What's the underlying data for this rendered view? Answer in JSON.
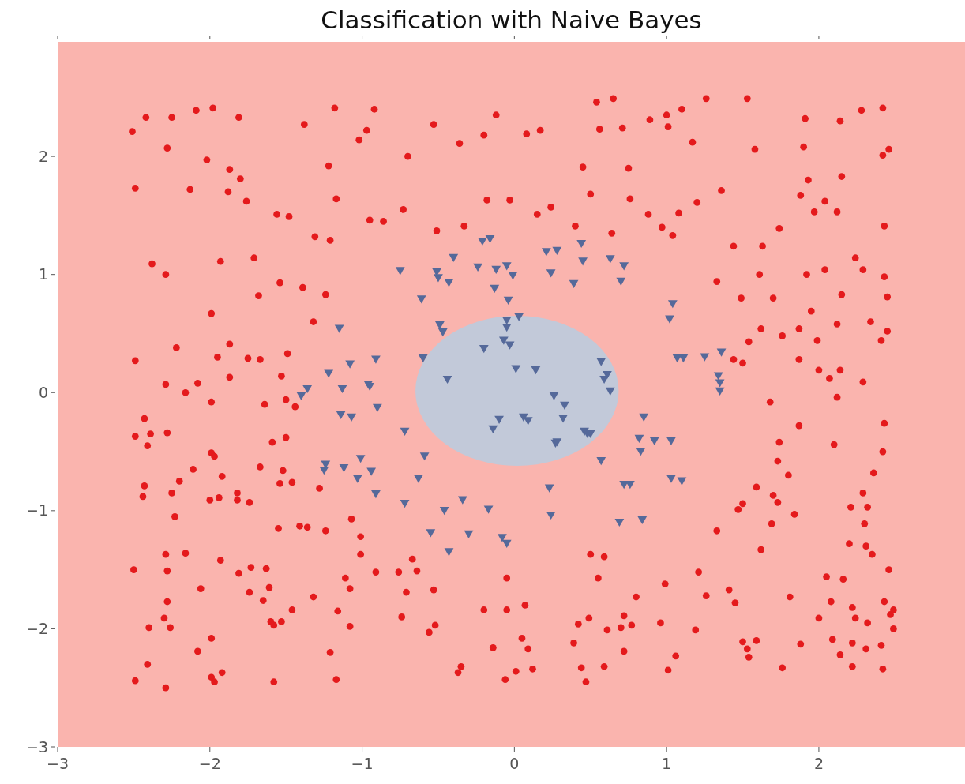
{
  "chart_data": {
    "type": "scatter",
    "title": "Classification with Naive Bayes",
    "xlim": [
      -3,
      2.96
    ],
    "ylim": [
      -3,
      2.97
    ],
    "xticks": [
      -3,
      -2,
      -1,
      0,
      1,
      2
    ],
    "yticks": [
      -3,
      -2,
      -1,
      0,
      1,
      2
    ],
    "grid": false,
    "bands": [
      {
        "axis": "x",
        "from": -3,
        "to": 2.96,
        "color": "#fab4ae"
      }
    ],
    "series": [
      {
        "type": "scatter",
        "marker": "circle",
        "color": "#e41a1c",
        "x": [
          -2.51,
          -2.42,
          -2.25,
          -2.09,
          -1.98,
          -1.81,
          -1.38,
          -1.18,
          -0.92,
          -0.53,
          -0.12,
          0.08,
          0.17,
          0.54,
          0.65,
          1.0,
          1.1,
          1.26,
          1.53,
          1.91,
          2.28,
          2.42,
          2.46,
          2.42,
          2.14,
          -2.28,
          -2.02,
          -1.87,
          -1.8,
          -1.22,
          -1.02,
          -0.97,
          -0.7,
          -0.36,
          -0.2,
          0.45,
          0.56,
          0.71,
          0.75,
          0.89,
          1.01,
          1.17,
          1.36,
          1.58,
          1.9,
          1.93,
          2.15,
          -2.49,
          -2.13,
          -1.88,
          -1.76,
          -1.56,
          -1.48,
          -1.31,
          -1.21,
          -1.17,
          -0.95,
          -0.86,
          -0.73,
          -0.51,
          -0.33,
          -0.18,
          -0.03,
          0.15,
          0.24,
          0.4,
          0.5,
          0.64,
          0.76,
          0.88,
          0.97,
          1.04,
          1.08,
          1.2,
          1.44,
          1.63,
          1.74,
          1.88,
          1.97,
          2.04,
          2.12,
          2.43,
          -2.38,
          -2.29,
          -1.93,
          -1.71,
          -1.68,
          -1.54,
          -1.39,
          -1.24,
          -1.32,
          1.61,
          1.33,
          1.49,
          1.7,
          1.92,
          2.04,
          2.24,
          2.29,
          2.43,
          2.45,
          2.15,
          2.34,
          1.95,
          1.76,
          1.87,
          1.99,
          2.12,
          2.45,
          2.41,
          1.54,
          1.62,
          1.5,
          1.44,
          1.87,
          2.0,
          2.14,
          2.07,
          2.29,
          1.68,
          2.12,
          2.43,
          1.87,
          2.1,
          1.74,
          2.42,
          -2.49,
          -2.22,
          -2.29,
          -2.16,
          -2.08,
          -1.99,
          -1.99,
          -1.95,
          -1.87,
          -1.87,
          -1.75,
          -1.67,
          -1.64,
          -1.49,
          -1.53,
          -1.5,
          -1.44,
          -2.43,
          -2.49,
          -2.28,
          -2.41,
          -2.39,
          -2.43,
          -2.44,
          -2.25,
          -2.2,
          -2.11,
          -1.99,
          -1.97,
          -1.92,
          -1.94,
          -2.0,
          -1.82,
          -1.82,
          -1.74,
          -1.67,
          -1.59,
          -1.5,
          -1.52,
          -1.54,
          -1.46,
          -1.28,
          -2.23,
          -1.55,
          -1.41,
          -1.36,
          -1.24,
          -1.07,
          -1.01,
          -1.01,
          -1.11,
          -1.08,
          -0.91,
          -0.67,
          -0.76,
          -0.64,
          -0.53,
          -0.71,
          -2.5,
          -2.29,
          -2.28,
          -2.16,
          -1.93,
          -2.28,
          -2.06,
          -1.73,
          -1.81,
          -1.74,
          -1.65,
          -1.63,
          -1.61,
          -1.32,
          -1.46,
          -1.6,
          -1.58,
          -1.53,
          -1.16,
          -1.08,
          -2.3,
          -2.4,
          -2.26,
          -1.99,
          -2.08,
          -2.41,
          -2.49,
          -1.99,
          -1.97,
          -1.92,
          -2.29,
          -1.58,
          -1.21,
          -1.17,
          -0.74,
          -0.56,
          -0.52,
          -0.2,
          -0.05,
          -0.05,
          0.07,
          -0.14,
          0.05,
          0.09,
          0.01,
          0.12,
          -0.06,
          -0.35,
          -0.37,
          0.39,
          0.42,
          0.49,
          0.44,
          0.47,
          0.5,
          0.59,
          0.55,
          0.59,
          0.61,
          0.72,
          0.7,
          0.77,
          0.72,
          0.8,
          0.96,
          0.99,
          1.01,
          1.06,
          1.19,
          1.21,
          1.26,
          1.33,
          1.41,
          1.45,
          1.47,
          1.5,
          1.5,
          1.53,
          1.54,
          1.59,
          1.59,
          1.62,
          1.7,
          1.69,
          1.73,
          1.73,
          1.8,
          1.84,
          1.81,
          1.76,
          1.88,
          2.0,
          2.05,
          2.08,
          2.09,
          2.14,
          2.16,
          2.2,
          2.21,
          2.22,
          2.24,
          2.22,
          2.22,
          2.29,
          2.3,
          2.32,
          2.31,
          2.35,
          2.32,
          2.31,
          2.36,
          2.41,
          2.42,
          2.46,
          2.47,
          2.49,
          2.49,
          2.43
        ],
        "values": [
          2.21,
          2.33,
          2.33,
          2.39,
          2.41,
          2.33,
          2.27,
          2.41,
          2.4,
          2.27,
          2.35,
          2.19,
          2.22,
          2.46,
          2.49,
          2.35,
          2.4,
          2.49,
          2.49,
          2.32,
          2.39,
          2.41,
          2.06,
          2.01,
          2.3,
          2.07,
          1.97,
          1.89,
          1.81,
          1.92,
          2.14,
          2.22,
          2.0,
          2.11,
          2.18,
          1.91,
          2.23,
          2.24,
          1.9,
          2.31,
          2.25,
          2.12,
          1.71,
          2.06,
          2.08,
          1.8,
          1.83,
          1.73,
          1.72,
          1.7,
          1.62,
          1.51,
          1.49,
          1.32,
          1.29,
          1.64,
          1.46,
          1.45,
          1.55,
          1.37,
          1.41,
          1.63,
          1.63,
          1.51,
          1.57,
          1.41,
          1.68,
          1.35,
          1.64,
          1.51,
          1.4,
          1.33,
          1.52,
          1.61,
          1.24,
          1.24,
          1.39,
          1.67,
          1.53,
          1.62,
          1.53,
          1.41,
          1.09,
          1.0,
          1.11,
          1.14,
          0.82,
          0.93,
          0.89,
          0.83,
          0.6,
          1.0,
          0.94,
          0.8,
          0.8,
          1.0,
          1.04,
          1.14,
          1.04,
          0.98,
          0.81,
          0.83,
          0.6,
          0.69,
          0.48,
          0.54,
          0.44,
          0.58,
          0.52,
          0.44,
          0.43,
          0.54,
          0.25,
          0.28,
          0.28,
          0.19,
          0.19,
          0.12,
          0.09,
          -0.08,
          -0.04,
          -0.26,
          -0.28,
          -0.44,
          -0.42,
          -0.5,
          0.27,
          0.38,
          0.07,
          0.0,
          0.08,
          -0.08,
          0.67,
          0.3,
          0.41,
          0.13,
          0.29,
          0.28,
          -0.1,
          0.33,
          0.14,
          -0.06,
          -0.12,
          -0.22,
          -0.37,
          -0.34,
          -0.45,
          -0.35,
          -0.79,
          -0.88,
          -0.85,
          -0.75,
          -0.65,
          -0.51,
          -0.54,
          -0.71,
          -0.89,
          -0.91,
          -0.85,
          -0.91,
          -0.93,
          -0.63,
          -0.42,
          -0.38,
          -0.66,
          -0.77,
          -0.76,
          -0.81,
          -1.05,
          -1.15,
          -1.13,
          -1.14,
          -1.17,
          -1.07,
          -1.22,
          -1.37,
          -1.57,
          -1.66,
          -1.52,
          -1.41,
          -1.52,
          -1.51,
          -1.67,
          -1.69,
          -1.5,
          -1.37,
          -1.51,
          -1.36,
          -1.42,
          -1.77,
          -1.66,
          -1.48,
          -1.53,
          -1.69,
          -1.76,
          -1.49,
          -1.65,
          -1.73,
          -1.84,
          -1.94,
          -1.97,
          -1.94,
          -1.85,
          -1.98,
          -1.91,
          -1.99,
          -1.99,
          -2.08,
          -2.19,
          -2.3,
          -2.44,
          -2.41,
          -2.45,
          -2.37,
          -2.5,
          -2.45,
          -2.2,
          -2.43,
          -1.9,
          -2.03,
          -1.97,
          -1.84,
          -1.84,
          -1.57,
          -1.8,
          -2.16,
          -2.08,
          -2.17,
          -2.36,
          -2.34,
          -2.43,
          -2.32,
          -2.37,
          -2.12,
          -1.96,
          -1.91,
          -2.33,
          -2.45,
          -1.37,
          -1.39,
          -1.57,
          -2.32,
          -2.01,
          -1.89,
          -1.99,
          -1.97,
          -2.19,
          -1.73,
          -1.95,
          -1.62,
          -2.35,
          -2.23,
          -2.01,
          -1.52,
          -1.72,
          -1.17,
          -1.67,
          -1.78,
          -0.99,
          -0.94,
          -2.11,
          -2.17,
          -2.24,
          -2.1,
          -0.8,
          -1.33,
          -0.87,
          -1.11,
          -0.93,
          -0.58,
          -0.7,
          -1.03,
          -1.73,
          -2.33,
          -2.13,
          -1.91,
          -1.56,
          -1.77,
          -2.09,
          -2.22,
          -1.58,
          -1.28,
          -0.97,
          -1.82,
          -1.91,
          -2.12,
          -2.32,
          -0.85,
          -1.11,
          -0.97,
          -1.3,
          -1.37,
          -1.95,
          -2.17,
          -0.68,
          -2.14,
          -2.34,
          -1.5,
          -1.88,
          -2.0,
          -1.84,
          -1.77
        ]
      },
      {
        "type": "scatter",
        "marker": "triangle",
        "color": "#55699a",
        "x": [
          -0.21,
          -0.16,
          -0.24,
          -0.12,
          -0.05,
          -0.01,
          -0.4,
          -0.51,
          -0.5,
          -0.43,
          -0.75,
          -0.61,
          -0.13,
          -0.04,
          0.21,
          0.28,
          0.24,
          0.39,
          0.45,
          0.44,
          0.63,
          0.72,
          0.7,
          -1.15,
          -0.91,
          -1.08,
          -1.22,
          -1.36,
          -1.4,
          -1.13,
          -0.96,
          -0.95,
          -0.9,
          -1.14,
          -1.07,
          -0.72,
          -0.59,
          -1.01,
          -1.24,
          -1.25,
          -1.12,
          -1.03,
          -0.94,
          -0.91,
          -0.63,
          -0.72,
          -0.55,
          -0.46,
          -0.34,
          -0.43,
          -0.3,
          -0.17,
          -0.08,
          -0.05,
          -0.49,
          -0.47,
          -0.6,
          -0.44,
          -0.05,
          0.03,
          -0.05,
          -0.07,
          -0.03,
          -0.2,
          0.01,
          0.14,
          -0.14,
          -0.1,
          0.06,
          0.09,
          0.26,
          0.32,
          0.33,
          0.27,
          0.28,
          0.46,
          0.48,
          0.5,
          0.59,
          0.61,
          0.57,
          0.63,
          0.57,
          0.23,
          0.24,
          0.72,
          0.76,
          0.69,
          0.85,
          0.82,
          0.83,
          0.92,
          1.03,
          1.03,
          1.1,
          0.84,
          1.04,
          1.02,
          1.07,
          1.11,
          1.25,
          1.36,
          1.34,
          1.35,
          1.35
        ],
        "values": [
          1.29,
          1.31,
          1.07,
          1.05,
          1.08,
          1.0,
          1.15,
          1.03,
          0.98,
          0.94,
          1.04,
          0.8,
          0.89,
          0.79,
          1.2,
          1.21,
          1.02,
          0.93,
          1.12,
          1.27,
          1.14,
          1.08,
          0.95,
          0.55,
          0.29,
          0.25,
          0.17,
          0.04,
          -0.02,
          0.04,
          0.08,
          0.06,
          -0.12,
          -0.18,
          -0.2,
          -0.32,
          -0.53,
          -0.55,
          -0.6,
          -0.65,
          -0.63,
          -0.72,
          -0.66,
          -0.85,
          -0.72,
          -0.93,
          -1.18,
          -0.99,
          -0.9,
          -1.34,
          -1.19,
          -0.98,
          -1.22,
          -1.27,
          0.58,
          0.52,
          0.3,
          0.12,
          0.62,
          0.65,
          0.56,
          0.45,
          0.41,
          0.38,
          0.21,
          0.2,
          -0.3,
          -0.22,
          -0.2,
          -0.23,
          -0.02,
          -0.21,
          -0.1,
          -0.42,
          -0.41,
          -0.32,
          -0.34,
          -0.34,
          0.12,
          0.16,
          0.27,
          0.02,
          -0.57,
          -0.8,
          -1.03,
          -0.77,
          -0.77,
          -1.09,
          -0.2,
          -0.38,
          -0.49,
          -0.4,
          -0.4,
          -0.72,
          -0.74,
          -1.07,
          0.76,
          0.63,
          0.3,
          0.3,
          0.31,
          0.35,
          0.15,
          0.09,
          0.02
        ]
      }
    ]
  }
}
